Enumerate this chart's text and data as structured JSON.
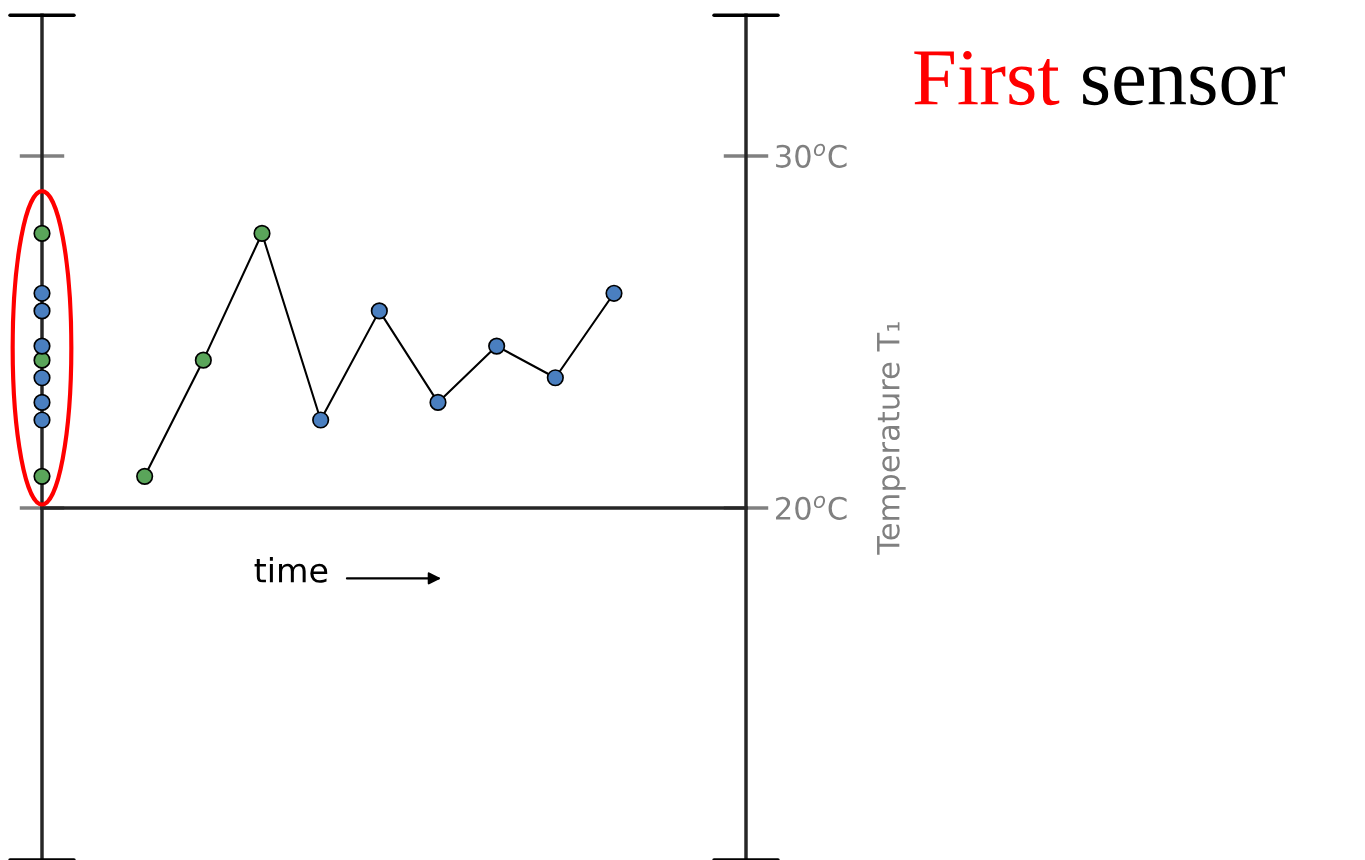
{
  "chart_data": {
    "type": "line",
    "title": "First sensor",
    "xlabel": "time",
    "ylabel": "Temperature T₁",
    "categories": [
      null,
      null,
      null,
      null,
      null,
      null,
      null,
      null,
      null
    ],
    "series": [
      {
        "color": "#000000",
        "colors": [
          "#5aa55a",
          "#5aa55a",
          "#5aa55a",
          "#4a7fc0",
          "#4a7fc0",
          "#4a7fc0",
          "#4a7fc0",
          "#4a7fc0",
          "#4a7fc0"
        ],
        "values": [
          20.9,
          24.2,
          27.8,
          22.5,
          25.6,
          23.0,
          24.6,
          23.7,
          26.1
        ]
      }
    ],
    "ylim": [
      10,
      34
    ],
    "yticks": [
      {
        "value": 20,
        "label": "20$^{o}$C"
      },
      {
        "value": 30,
        "label": "30$^{o}$C"
      }
    ],
    "tick_labels": "y",
    "marker": "circle"
  }
}
